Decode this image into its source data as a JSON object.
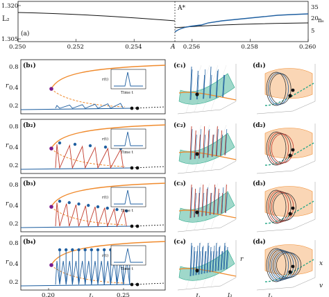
{
  "colors": {
    "orange": "#f08a2c",
    "blue": "#1f5fa0",
    "red": "#c0392b",
    "green": "#2aa889",
    "purple": "#7a1a8c",
    "black": "#111111"
  },
  "panel_a": {
    "label": "(a)",
    "ylabel_left": "L₂",
    "ylabel_right": "nₛ",
    "xlabel": "A",
    "marker_label": "A*",
    "marker_x": 0.2554,
    "yticks_left": [
      "1.320",
      "1.305"
    ],
    "yticks_right": [
      "35",
      "20",
      "5"
    ],
    "xticks": [
      "0.250",
      "0.252",
      "0.254",
      "0.256",
      "0.258",
      "0.260"
    ]
  },
  "panels_b": {
    "labels": [
      "(b₁)",
      "(b₂)",
      "(b₃)",
      "(b₄)"
    ],
    "ylabel": "r",
    "yticks": [
      "0.8",
      "0.4",
      "0.2"
    ],
    "xlabel": "I₁",
    "xticks": [
      "0.20",
      "0.25"
    ],
    "inset_ylabel": "r(t)",
    "inset_xlabel": "Time t",
    "spike_counts": [
      0,
      5,
      8,
      12
    ]
  },
  "panels_c": {
    "labels": [
      "(c₁)",
      "(c₂)",
      "(c₃)",
      "(c₄)"
    ],
    "axis_labels": [
      "I₁",
      "I₃",
      "r"
    ]
  },
  "panels_d": {
    "labels": [
      "(d₁)",
      "(d₂)",
      "(d₃)",
      "(d₄)"
    ],
    "axis_labels": [
      "I₁",
      "v",
      "x"
    ]
  }
}
